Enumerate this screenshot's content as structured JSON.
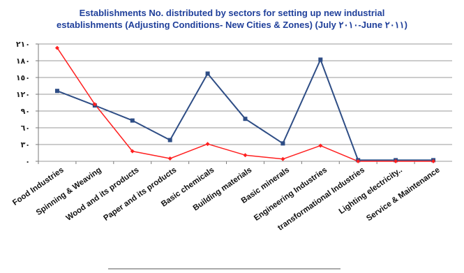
{
  "chart_data": {
    "type": "line",
    "title": "Establishments No. distributed by sectors for setting up new industrial",
    "subtitle": "establishments (Adjusting Conditions- New Cities & Zones) (July ٢٠١٠-June ٢٠١١)",
    "xlabel": "",
    "ylabel": "",
    "categories": [
      "Food Industries",
      "Spinning & Weaving",
      "Wood and its products",
      "Paper and its products",
      "Basic chemicals",
      "Building materials",
      "Basic minerals",
      "Engineering Industries",
      "transformational Industries",
      "Lighting electricity..",
      "Service & Maintenance"
    ],
    "ylim": [
      0,
      210
    ],
    "yticks": [
      0,
      30,
      60,
      90,
      120,
      150,
      180,
      210
    ],
    "ytick_labels": [
      "٠",
      "٣٠",
      "٦٠",
      "٩٠",
      "١٢٠",
      "١٥٠",
      "١٨٠",
      "٢١٠"
    ],
    "grid": true,
    "legend": "none",
    "series": [
      {
        "color": "#2e4d85",
        "marker": "square",
        "values": [
          126,
          100,
          73,
          38,
          157,
          76,
          32,
          182,
          2,
          2,
          2
        ]
      },
      {
        "color": "#ff2020",
        "marker": "diamond",
        "values": [
          203,
          102,
          18,
          5,
          31,
          11,
          4,
          28,
          0,
          0,
          0
        ]
      }
    ]
  }
}
